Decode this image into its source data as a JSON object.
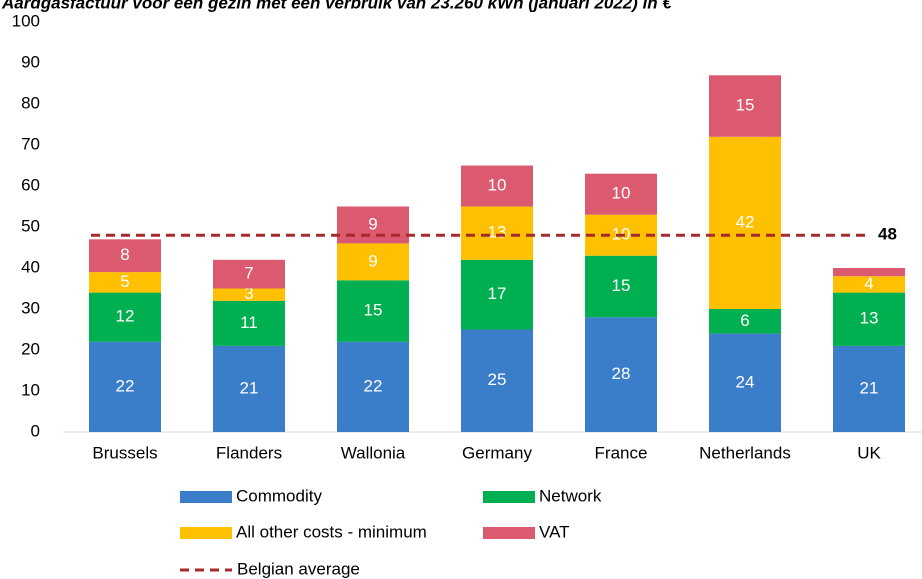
{
  "chart_data": {
    "type": "stacked_bar",
    "title": "Aardgasfactuur voor een gezin met een verbruik van 23.260 kWh (januari 2022) in €",
    "categories": [
      "Brussels",
      "Flanders",
      "Wallonia",
      "Germany",
      "France",
      "Netherlands",
      "UK"
    ],
    "series": [
      {
        "name": "Commodity",
        "color": "#3a7dc9",
        "values": [
          22,
          21,
          22,
          25,
          28,
          24,
          21
        ]
      },
      {
        "name": "Network",
        "color": "#00b050",
        "values": [
          12,
          11,
          15,
          17,
          15,
          6,
          13
        ]
      },
      {
        "name": "All other costs - minimum",
        "color": "#ffc000",
        "values": [
          5,
          3,
          9,
          13,
          10,
          42,
          4
        ]
      },
      {
        "name": "VAT",
        "color": "#dc5a70",
        "values": [
          8,
          7,
          9,
          10,
          10,
          15,
          2
        ],
        "value_labels": [
          "8",
          "7",
          "9",
          "10",
          "10",
          "15",
          null
        ]
      }
    ],
    "reference_line": {
      "name": "Belgian average",
      "value": 48,
      "color": "#a52a2a"
    },
    "ylim": [
      0,
      100
    ],
    "yticks": [
      0,
      10,
      20,
      30,
      40,
      50,
      60,
      70,
      80,
      90,
      100
    ]
  }
}
